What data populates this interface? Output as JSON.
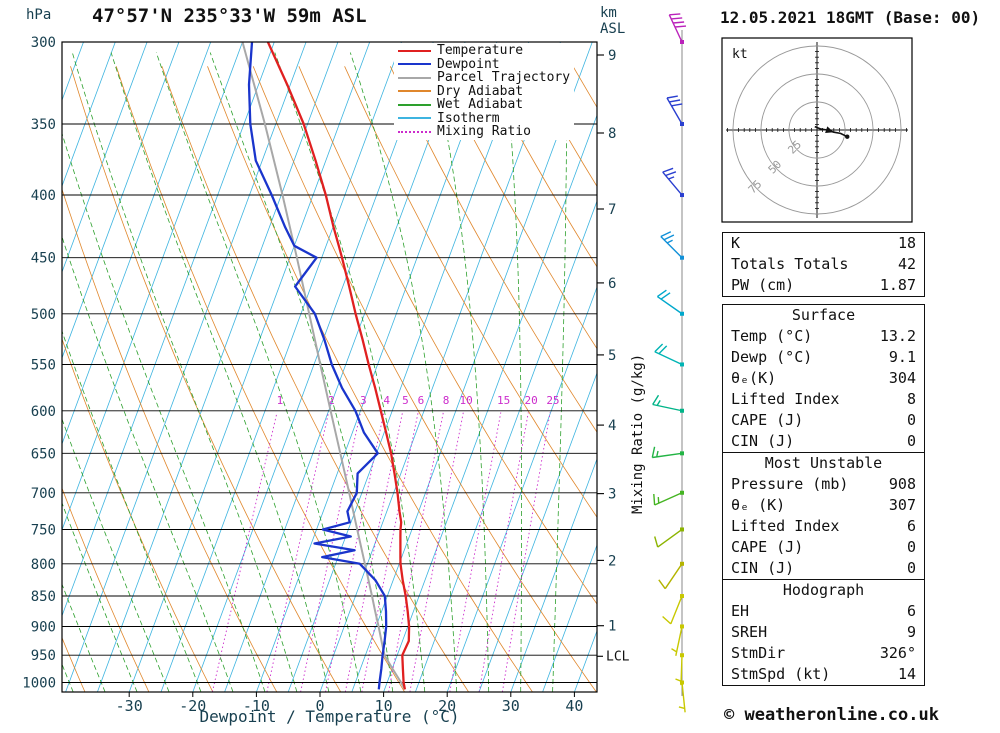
{
  "header": {
    "station_title": "47°57'N 235°33'W 59m ASL",
    "datetime_title": "12.05.2021 18GMT (Base: 00)"
  },
  "axis_labels": {
    "pressure_unit": "hPa",
    "km_unit_line1": "km",
    "km_unit_line2": "ASL",
    "x_axis": "Dewpoint / Temperature (°C)",
    "mixing_ratio_axis": "Mixing Ratio (g/kg)",
    "lcl": "LCL"
  },
  "legend": {
    "items": [
      {
        "label": "Temperature",
        "color": "#e02020",
        "dash": ""
      },
      {
        "label": "Dewpoint",
        "color": "#1a35cc",
        "dash": ""
      },
      {
        "label": "Parcel Trajectory",
        "color": "#a8a8a8",
        "dash": ""
      },
      {
        "label": "Dry Adiabat",
        "color": "#e0872c",
        "dash": ""
      },
      {
        "label": "Wet Adiabat",
        "color": "#2da02d",
        "dash": ""
      },
      {
        "label": "Isotherm",
        "color": "#3db4e0",
        "dash": ""
      },
      {
        "label": "Mixing Ratio",
        "color": "#cc2ccc",
        "dash": "dotted"
      }
    ]
  },
  "hodograph_panel": {
    "unit": "kt",
    "rings": [
      25,
      50,
      75
    ]
  },
  "stats_tables": [
    {
      "header": null,
      "rows": [
        [
          "K",
          "18"
        ],
        [
          "Totals Totals",
          "42"
        ],
        [
          "PW (cm)",
          "1.87"
        ]
      ]
    },
    {
      "header": "Surface",
      "rows": [
        [
          "Temp (°C)",
          "13.2"
        ],
        [
          "Dewp (°C)",
          "9.1"
        ],
        [
          "θₑ(K)",
          "304"
        ],
        [
          "Lifted Index",
          "8"
        ],
        [
          "CAPE (J)",
          "0"
        ],
        [
          "CIN (J)",
          "0"
        ]
      ]
    },
    {
      "header": "Most Unstable",
      "rows": [
        [
          "Pressure (mb)",
          "908"
        ],
        [
          "θₑ (K)",
          "307"
        ],
        [
          "Lifted Index",
          "6"
        ],
        [
          "CAPE (J)",
          "0"
        ],
        [
          "CIN (J)",
          "0"
        ]
      ]
    },
    {
      "header": "Hodograph",
      "rows": [
        [
          "EH",
          "6"
        ],
        [
          "SREH",
          "9"
        ],
        [
          "StmDir",
          "326°"
        ],
        [
          "StmSpd (kt)",
          "14"
        ]
      ]
    }
  ],
  "footer": "© weatheronline.co.uk",
  "chart_data": {
    "type": "line",
    "title": "Skew-T log-P sounding 47°57'N 235°33'W 59m ASL",
    "xlabel": "Dewpoint / Temperature (°C)",
    "ylabel": "Pressure (hPa)",
    "xlim": [
      -40,
      40
    ],
    "ylim": [
      1018,
      300
    ],
    "grid": "skew-t background (isotherms, dry/wet adiabats, mixing ratio lines)",
    "legend_position": "top-right",
    "pressure_ticks": [
      300,
      350,
      400,
      450,
      500,
      550,
      600,
      650,
      700,
      750,
      800,
      850,
      900,
      950,
      1000
    ],
    "temp_ticks": [
      -30,
      -20,
      -10,
      0,
      10,
      20,
      30,
      40
    ],
    "km_ticks": [
      1,
      2,
      3,
      4,
      5,
      6,
      7,
      8,
      9
    ],
    "mixing_ratio_lines": [
      1,
      2,
      3,
      4,
      5,
      6,
      8,
      10,
      15,
      20,
      25
    ],
    "lcl_pressure": 952,
    "series": [
      {
        "name": "Temperature",
        "color": "#e02020",
        "pressure": [
          1013,
          1000,
          975,
          950,
          925,
          900,
          875,
          850,
          825,
          800,
          790,
          780,
          770,
          760,
          750,
          740,
          725,
          700,
          675,
          650,
          625,
          600,
          575,
          550,
          525,
          500,
          475,
          450,
          440,
          425,
          400,
          375,
          350,
          325,
          300
        ],
        "values": [
          13.2,
          12.6,
          11.7,
          10.8,
          11.0,
          10.2,
          9.1,
          7.9,
          6.5,
          5.2,
          4.8,
          4.4,
          4.0,
          3.6,
          3.2,
          2.9,
          2.0,
          0.6,
          -1.0,
          -2.7,
          -4.7,
          -6.8,
          -9.0,
          -11.4,
          -13.8,
          -16.4,
          -19.0,
          -21.8,
          -23.0,
          -24.9,
          -28.0,
          -31.6,
          -35.6,
          -40.5,
          -46.0
        ]
      },
      {
        "name": "Dewpoint",
        "color": "#1a35cc",
        "pressure": [
          1013,
          1000,
          975,
          950,
          925,
          900,
          875,
          850,
          825,
          800,
          790,
          780,
          770,
          760,
          750,
          740,
          725,
          700,
          675,
          650,
          625,
          600,
          575,
          550,
          525,
          500,
          475,
          450,
          440,
          425,
          400,
          375,
          350,
          325,
          300
        ],
        "values": [
          9.1,
          8.8,
          8.3,
          7.7,
          7.2,
          6.6,
          5.7,
          4.6,
          2.2,
          -1.2,
          -7.5,
          -2.8,
          -9.5,
          -4.2,
          -9.0,
          -5.2,
          -6.2,
          -5.8,
          -6.8,
          -4.8,
          -8.2,
          -10.8,
          -14.2,
          -17.2,
          -19.8,
          -22.8,
          -27.5,
          -25.8,
          -30.0,
          -32.5,
          -36.5,
          -41.0,
          -44.0,
          -46.5,
          -48.5
        ]
      },
      {
        "name": "Parcel Trajectory",
        "color": "#a8a8a8",
        "pressure": [
          1013,
          1000,
          975,
          950,
          925,
          900,
          875,
          850,
          800,
          750,
          700,
          650,
          600,
          550,
          500,
          450,
          400,
          350,
          300
        ],
        "values": [
          13.2,
          12.2,
          10.1,
          8.0,
          6.7,
          5.4,
          4.0,
          2.6,
          -0.4,
          -3.6,
          -7.0,
          -10.7,
          -14.7,
          -19.0,
          -23.7,
          -28.9,
          -34.8,
          -41.7,
          -50.0
        ]
      }
    ],
    "wind_levels": [
      {
        "p": 300,
        "dir": 335,
        "spd": 40,
        "color": "#bb22bb"
      },
      {
        "p": 350,
        "dir": 330,
        "spd": 30,
        "color": "#2a3fd0"
      },
      {
        "p": 400,
        "dir": 320,
        "spd": 25,
        "color": "#2a3fd0"
      },
      {
        "p": 450,
        "dir": 315,
        "spd": 25,
        "color": "#1090d8"
      },
      {
        "p": 500,
        "dir": 305,
        "spd": 20,
        "color": "#00a8cc"
      },
      {
        "p": 550,
        "dir": 295,
        "spd": 20,
        "color": "#00b4b4"
      },
      {
        "p": 600,
        "dir": 282,
        "spd": 15,
        "color": "#00b488"
      },
      {
        "p": 650,
        "dir": 262,
        "spd": 15,
        "color": "#22b444"
      },
      {
        "p": 700,
        "dir": 246,
        "spd": 15,
        "color": "#44b422"
      },
      {
        "p": 750,
        "dir": 234,
        "spd": 10,
        "color": "#8cb400"
      },
      {
        "p": 800,
        "dir": 214,
        "spd": 10,
        "color": "#b4b400"
      },
      {
        "p": 850,
        "dir": 202,
        "spd": 10,
        "color": "#c8c800"
      },
      {
        "p": 900,
        "dir": 192,
        "spd": 5,
        "color": "#c8c800"
      },
      {
        "p": 950,
        "dir": 182,
        "spd": 5,
        "color": "#c8c800"
      },
      {
        "p": 1000,
        "dir": 174,
        "spd": 5,
        "color": "#c8c800"
      }
    ],
    "hodograph_trace": {
      "u": [
        -2,
        3,
        9,
        15,
        21,
        27
      ],
      "v": [
        3,
        1,
        0,
        -2,
        -3,
        -6
      ]
    }
  }
}
